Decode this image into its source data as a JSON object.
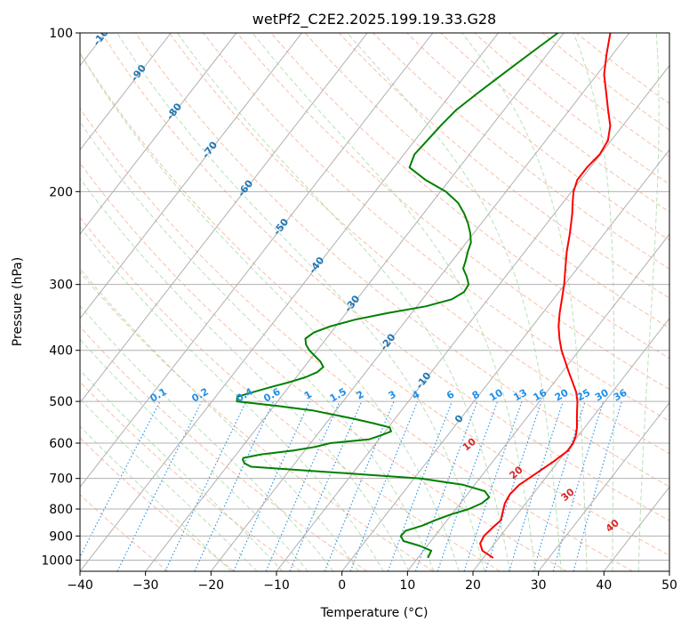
{
  "chart_data": {
    "type": "line",
    "title": "wetPf2_C2E2.2025.199.19.33.G28",
    "xlabel": "Temperature (°C)",
    "ylabel": "Pressure (hPa)",
    "xlim": [
      -40,
      50
    ],
    "ylim": [
      1050,
      100
    ],
    "y_scale": "log",
    "grid": true,
    "x_ticks": [
      "−40",
      "−30",
      "−20",
      "−10",
      "0",
      "10",
      "20",
      "30",
      "40",
      "50"
    ],
    "x_tick_values": [
      -40,
      -30,
      -20,
      -10,
      0,
      10,
      20,
      30,
      40,
      50
    ],
    "y_ticks": [
      "100",
      "200",
      "300",
      "400",
      "500",
      "600",
      "700",
      "800",
      "900",
      "1000"
    ],
    "y_tick_values": [
      100,
      200,
      300,
      400,
      500,
      600,
      700,
      800,
      900,
      1000
    ],
    "colors": {
      "temperature": "#ff0000",
      "dewpoint": "#008000",
      "isotherm": "#b0b0b0",
      "dry_adiabat": "#f4a582",
      "moist_adiabat": "#a6d9a6",
      "mixing_ratio": "#1f8fe8",
      "isotherm_label": "#1f77b4",
      "dry_adiabat_label": "#d62728"
    },
    "series": [
      {
        "key": "temperature",
        "p": [
          990,
          960,
          930,
          900,
          870,
          840,
          810,
          780,
          750,
          720,
          700,
          680,
          650,
          620,
          600,
          580,
          560,
          540,
          520,
          500,
          480,
          460,
          440,
          420,
          400,
          380,
          360,
          340,
          320,
          300,
          280,
          260,
          240,
          220,
          210,
          200,
          190,
          180,
          170,
          160,
          150,
          140,
          130,
          120,
          110,
          100
        ],
        "t": [
          21.5,
          19,
          17.8,
          17.5,
          17.8,
          18.2,
          17.5,
          16.8,
          16.5,
          16.8,
          17.5,
          18.2,
          19.3,
          20.2,
          20.1,
          19.6,
          18.8,
          17.8,
          16.8,
          15.8,
          14.5,
          12.8,
          11,
          9.2,
          7.3,
          5.6,
          4,
          2.6,
          1.3,
          -0.1,
          -1.8,
          -3.6,
          -5.3,
          -7.3,
          -8.5,
          -9.7,
          -10.5,
          -10.5,
          -10.1,
          -10.5,
          -11.9,
          -14.1,
          -16.4,
          -18.9,
          -20.9,
          -22.9
        ]
      },
      {
        "key": "dewpoint",
        "p": [
          990,
          960,
          940,
          920,
          900,
          880,
          860,
          840,
          820,
          800,
          780,
          760,
          740,
          720,
          700,
          680,
          665,
          655,
          645,
          640,
          630,
          620,
          610,
          600,
          590,
          580,
          570,
          560,
          550,
          540,
          530,
          520,
          510,
          500,
          490,
          480,
          470,
          460,
          450,
          440,
          430,
          420,
          410,
          400,
          390,
          380,
          370,
          360,
          350,
          340,
          330,
          320,
          310,
          300,
          290,
          280,
          270,
          260,
          250,
          240,
          230,
          220,
          210,
          200,
          190,
          180,
          170,
          160,
          150,
          140,
          130,
          120,
          110,
          100
        ],
        "t": [
          11.5,
          11.2,
          8.9,
          5.8,
          4.8,
          4.9,
          6.9,
          8.2,
          9.8,
          12,
          13.3,
          13.7,
          12.3,
          8.3,
          1,
          -14.4,
          -26.3,
          -27.7,
          -28.4,
          -28.5,
          -26.2,
          -21.8,
          -18.9,
          -17,
          -11.5,
          -10.2,
          -9.1,
          -9.8,
          -12.8,
          -16.1,
          -19.8,
          -23.6,
          -29.4,
          -36.2,
          -36.7,
          -34.8,
          -32.8,
          -30.5,
          -28.6,
          -27.4,
          -27.1,
          -28.2,
          -29.7,
          -31.2,
          -32.4,
          -33.2,
          -32.6,
          -30.8,
          -27.9,
          -23.7,
          -18.6,
          -15.5,
          -14.5,
          -14.7,
          -15.9,
          -17.4,
          -18,
          -18.7,
          -19.3,
          -20.5,
          -22,
          -23.8,
          -26,
          -29.2,
          -33.7,
          -37.6,
          -38.4,
          -38.1,
          -37.8,
          -37.3,
          -36,
          -34.5,
          -32.8,
          -30.9
        ]
      }
    ],
    "isotherm_labels": [
      "-100",
      "-90",
      "-80",
      "-70",
      "-60",
      "-50",
      "-40",
      "-30",
      "-20",
      "-10",
      "0"
    ],
    "isotherm_label_values": [
      -100,
      -90,
      -80,
      -70,
      -60,
      -50,
      -40,
      -30,
      -20,
      -10,
      0
    ],
    "dry_adiabat_labels": [
      "10",
      "20",
      "30",
      "40"
    ],
    "dry_adiabat_label_values": [
      10,
      20,
      30,
      40
    ],
    "mixing_ratio_labels": [
      "0.1",
      "0.2",
      "0.4",
      "0.6",
      "1",
      "1.5",
      "2",
      "3",
      "4",
      "6",
      "8",
      "10",
      "13",
      "16",
      "20",
      "25",
      "30",
      "36"
    ],
    "mixing_ratio_values": [
      0.1,
      0.2,
      0.4,
      0.6,
      1,
      1.5,
      2,
      3,
      4,
      6,
      8,
      10,
      13,
      16,
      20,
      25,
      30,
      36
    ]
  }
}
